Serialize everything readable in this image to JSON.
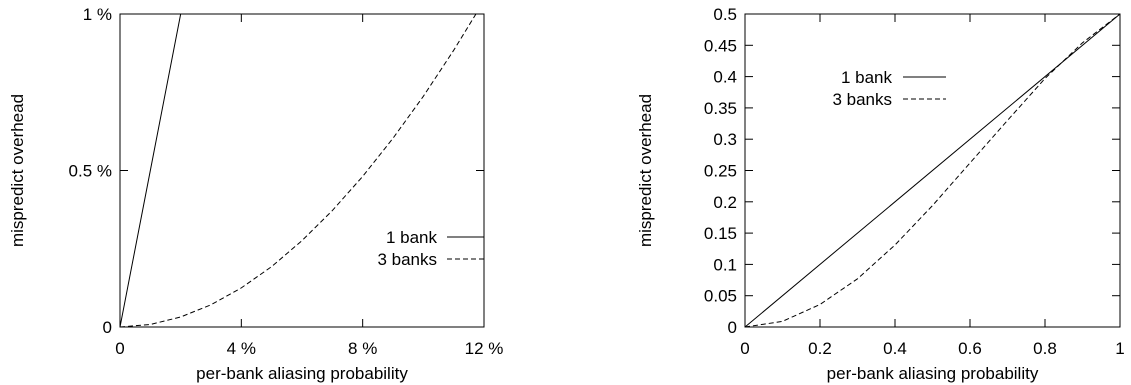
{
  "chart_data": [
    {
      "type": "line",
      "title": "",
      "xlabel": "per-bank aliasing probability",
      "ylabel": "mispredict overhead",
      "xlim": [
        0,
        12
      ],
      "ylim": [
        0,
        1
      ],
      "x_unit": "%",
      "y_unit": "%",
      "xticks": [
        {
          "value": 0,
          "label": "0"
        },
        {
          "value": 4,
          "label": "4 %"
        },
        {
          "value": 8,
          "label": "8 %"
        },
        {
          "value": 12,
          "label": "12 %"
        }
      ],
      "yticks": [
        {
          "value": 0,
          "label": "0"
        },
        {
          "value": 0.5,
          "label": "0.5 %"
        },
        {
          "value": 1,
          "label": "1 %"
        }
      ],
      "grid": false,
      "legend_position": "lower-right",
      "series": [
        {
          "name": "1 bank",
          "style": "solid",
          "color": "#000000",
          "x": [
            0,
            1,
            2
          ],
          "y": [
            0,
            0.5,
            1.0
          ]
        },
        {
          "name": "3 banks",
          "style": "dashed",
          "color": "#000000",
          "x": [
            0,
            1,
            2,
            3,
            4,
            5,
            6,
            7,
            8,
            9,
            10,
            11,
            12
          ],
          "y": [
            0,
            0.008,
            0.032,
            0.071,
            0.125,
            0.193,
            0.276,
            0.372,
            0.481,
            0.603,
            0.737,
            0.884,
            1.042
          ]
        }
      ]
    },
    {
      "type": "line",
      "title": "",
      "xlabel": "per-bank aliasing probability",
      "ylabel": "mispredict overhead",
      "xlim": [
        0,
        1
      ],
      "ylim": [
        0,
        0.5
      ],
      "xticks": [
        {
          "value": 0,
          "label": "0"
        },
        {
          "value": 0.2,
          "label": "0.2"
        },
        {
          "value": 0.4,
          "label": "0.4"
        },
        {
          "value": 0.6,
          "label": "0.6"
        },
        {
          "value": 0.8,
          "label": "0.8"
        },
        {
          "value": 1,
          "label": "1"
        }
      ],
      "yticks": [
        {
          "value": 0,
          "label": "0"
        },
        {
          "value": 0.05,
          "label": "0.05"
        },
        {
          "value": 0.1,
          "label": "0.1"
        },
        {
          "value": 0.15,
          "label": "0.15"
        },
        {
          "value": 0.2,
          "label": "0.2"
        },
        {
          "value": 0.25,
          "label": "0.25"
        },
        {
          "value": 0.3,
          "label": "0.3"
        },
        {
          "value": 0.35,
          "label": "0.35"
        },
        {
          "value": 0.4,
          "label": "0.4"
        },
        {
          "value": 0.45,
          "label": "0.45"
        },
        {
          "value": 0.5,
          "label": "0.5"
        }
      ],
      "grid": false,
      "legend_position": "top-left",
      "series": [
        {
          "name": "1 bank",
          "style": "solid",
          "color": "#000000",
          "x": [
            0,
            1
          ],
          "y": [
            0,
            0.5
          ]
        },
        {
          "name": "3 banks",
          "style": "dashed",
          "color": "#000000",
          "x": [
            0,
            0.1,
            0.2,
            0.3,
            0.4,
            0.5,
            0.6,
            0.7,
            0.8,
            0.9,
            1.0
          ],
          "y": [
            0,
            0.009,
            0.036,
            0.077,
            0.131,
            0.194,
            0.262,
            0.33,
            0.397,
            0.454,
            0.5
          ]
        }
      ]
    }
  ]
}
